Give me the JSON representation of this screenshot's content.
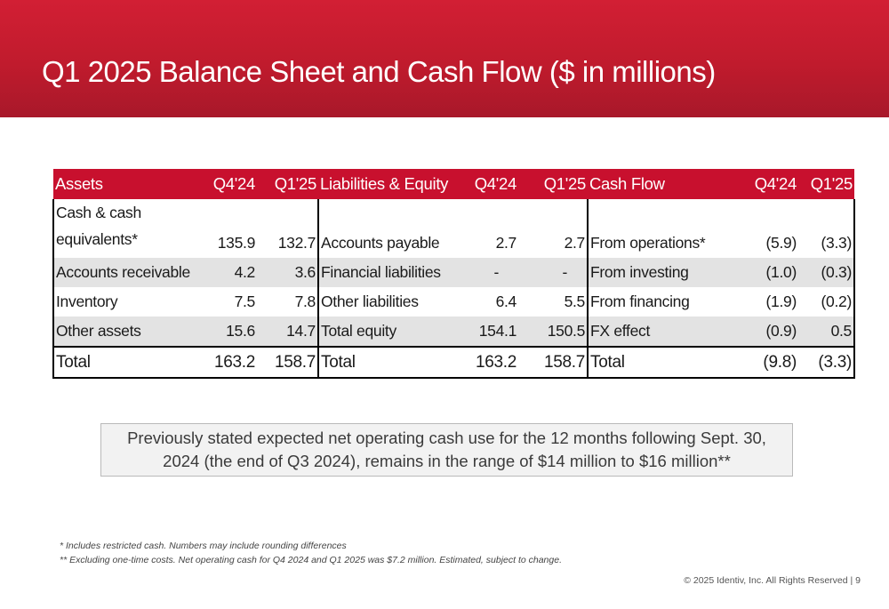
{
  "title": "Q1 2025 Balance Sheet and Cash Flow ($ in millions)",
  "colors": {
    "header_bg": "#c8102e",
    "shade_row": "#e3e3e3"
  },
  "table": {
    "headers": {
      "assets": "Assets",
      "assets_q4": "Q4'24",
      "assets_q1": "Q1'25",
      "liab": "Liabilities & Equity",
      "liab_q4": "Q4'24",
      "liab_q1": "Q1'25",
      "cash": "Cash Flow",
      "cash_q4": "Q4'24",
      "cash_q1": "Q1'25"
    },
    "rows": [
      [
        "Cash & cash equivalents*",
        "135.9",
        "132.7",
        "Accounts payable",
        "2.7",
        "2.7",
        "From operations*",
        "(5.9)",
        "(3.3)"
      ],
      [
        "Accounts receivable",
        "4.2",
        "3.6",
        "Financial liabilities",
        "-",
        "-",
        "From investing",
        "(1.0)",
        "(0.3)"
      ],
      [
        "Inventory",
        "7.5",
        "7.8",
        "Other liabilities",
        "6.4",
        "5.5",
        "From financing",
        "(1.9)",
        "(0.2)"
      ],
      [
        "Other assets",
        "15.6",
        "14.7",
        "Total equity",
        "154.1",
        "150.5",
        "FX effect",
        "(0.9)",
        "0.5"
      ]
    ],
    "total": [
      "Total",
      "163.2",
      "158.7",
      "Total",
      "163.2",
      "158.7",
      "Total",
      "(9.8)",
      "(3.3)"
    ]
  },
  "callout": "Previously stated expected net operating cash use for the 12 months following Sept. 30, 2024 (the end of Q3 2024), remains in the range of $14 million to $16 million**",
  "footnotes": [
    "* Includes restricted cash. Numbers may include rounding differences",
    "** Excluding one-time costs. Net operating cash for Q4 2024 and Q1 2025 was $7.2 million. Estimated, subject to change."
  ],
  "copyright": "© 2025 Identiv, Inc. All Rights Reserved | 9"
}
